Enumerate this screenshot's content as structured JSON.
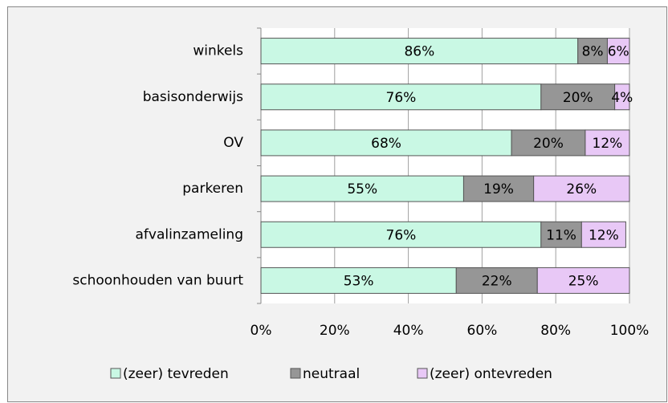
{
  "chart_data": {
    "type": "stacked-barh",
    "categories": [
      "winkels",
      "basisonderwijs",
      "OV",
      "parkeren",
      "afvalinzameling",
      "schoonhouden van buurt"
    ],
    "series": [
      {
        "name": "(zeer) tevreden",
        "color": "#c9f8e4",
        "values": [
          86,
          76,
          68,
          55,
          76,
          53
        ],
        "value_labels": [
          "86%",
          "76%",
          "68%",
          "55%",
          "76%",
          "53%"
        ]
      },
      {
        "name": "neutraal",
        "color": "#969696",
        "values": [
          8,
          20,
          20,
          19,
          11,
          22
        ],
        "value_labels": [
          "8%",
          "20%",
          "20%",
          "19%",
          "11%",
          "22%"
        ]
      },
      {
        "name": "(zeer) ontevreden",
        "color": "#e8c8f6",
        "values": [
          6,
          4,
          12,
          26,
          12,
          25
        ],
        "value_labels": [
          "6%",
          "4%",
          "12%",
          "26%",
          "12%",
          "25%"
        ]
      }
    ],
    "xlim": [
      0,
      100
    ],
    "xticks": [
      {
        "value": 0,
        "label": "0%"
      },
      {
        "value": 20,
        "label": "20%"
      },
      {
        "value": 40,
        "label": "40%"
      },
      {
        "value": 60,
        "label": "60%"
      },
      {
        "value": 80,
        "label": "80%"
      },
      {
        "value": 100,
        "label": "100%"
      }
    ],
    "grid": true,
    "legend": "bottom"
  }
}
